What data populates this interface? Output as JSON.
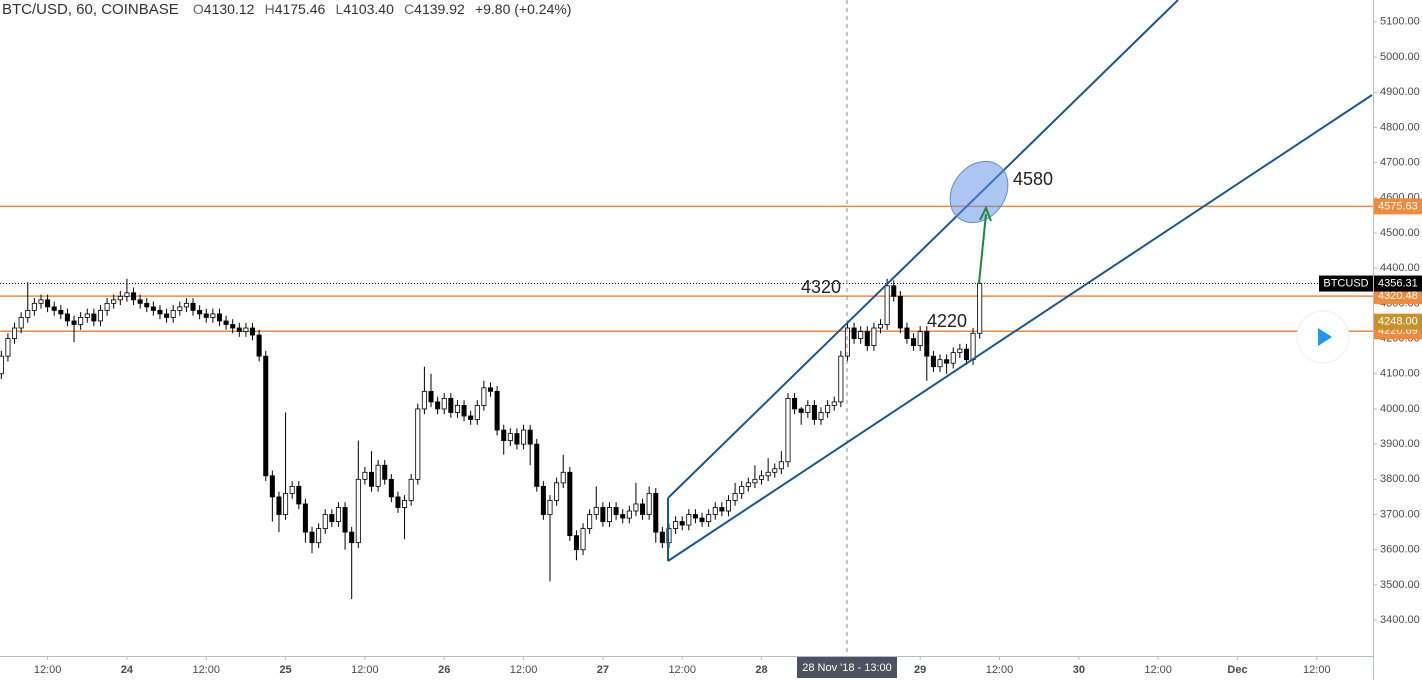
{
  "chart_data": {
    "type": "candlestick",
    "title": "BTC/USD, 60, COINBASE",
    "legend": {
      "o_label": "O",
      "o": "4130.12",
      "h_label": "H",
      "h": "4175.46",
      "l_label": "L",
      "l": "4103.40",
      "c_label": "C",
      "c": "4139.92",
      "change": "+9.80 (+0.24%)"
    },
    "crosshair_label": "28 Nov '18 - 13:00",
    "annotations": [
      "4580",
      "4320",
      "4220"
    ],
    "symbol_label": "BTCUSD",
    "ylim": [
      3298,
      5162
    ],
    "xlim": [
      -0.2,
      207.5
    ],
    "yticks": [
      {
        "value": 3400,
        "label": "3400.00"
      },
      {
        "value": 3500,
        "label": "3500.00"
      },
      {
        "value": 3600,
        "label": "3600.00"
      },
      {
        "value": 3700,
        "label": "3700.00"
      },
      {
        "value": 3800,
        "label": "3800.00"
      },
      {
        "value": 3900,
        "label": "3900.00"
      },
      {
        "value": 4000,
        "label": "4000.00"
      },
      {
        "value": 4100,
        "label": "4100.00"
      },
      {
        "value": 4200,
        "label": "4200.00"
      },
      {
        "value": 4300,
        "label": "4300.00"
      },
      {
        "value": 4400,
        "label": "4400.00"
      },
      {
        "value": 4500,
        "label": "4500.00"
      },
      {
        "value": 4600,
        "label": "4600.00"
      },
      {
        "value": 4700,
        "label": "4700.00"
      },
      {
        "value": 4800,
        "label": "4800.00"
      },
      {
        "value": 4900,
        "label": "4900.00"
      },
      {
        "value": 5000,
        "label": "5000.00"
      },
      {
        "value": 5100,
        "label": "5100.00"
      }
    ],
    "xticks": [
      {
        "value": 7,
        "label": "12:00"
      },
      {
        "value": 19,
        "label": "24"
      },
      {
        "value": 31,
        "label": "12:00"
      },
      {
        "value": 43,
        "label": "25"
      },
      {
        "value": 55,
        "label": "12:00"
      },
      {
        "value": 67,
        "label": "26"
      },
      {
        "value": 79,
        "label": "12:00"
      },
      {
        "value": 91,
        "label": "27"
      },
      {
        "value": 103,
        "label": "12:00"
      },
      {
        "value": 115,
        "label": "28"
      },
      {
        "value": 139,
        "label": "29"
      },
      {
        "value": 151,
        "label": "12:00"
      },
      {
        "value": 163,
        "label": "30"
      },
      {
        "value": 175,
        "label": "12:00"
      },
      {
        "value": 187,
        "label": "Dec"
      },
      {
        "value": 199,
        "label": "12:00"
      }
    ],
    "levels": [
      {
        "value": 4575.63,
        "label": "4575.63",
        "color": "#f08a3c",
        "line": true
      },
      {
        "value": 4320.48,
        "label": "4320.48",
        "color": "#f08a3c",
        "line": true
      },
      {
        "value": 4220.69,
        "label": "4220.69",
        "color": "#f08a3c",
        "line": true
      },
      {
        "value": 4248.0,
        "label": "4248.00",
        "color": "#c8922a",
        "line": false
      }
    ],
    "last_price": {
      "value": 4356.31,
      "label": "4356.31",
      "color": "#000000"
    },
    "up_color": "#ffffff",
    "down_color": "#000000",
    "open": [
      4100,
      4150,
      4200,
      4230,
      4260,
      4280,
      4300,
      4310,
      4290,
      4280,
      4270,
      4250,
      4240,
      4260,
      4270,
      4250,
      4280,
      4300,
      4310,
      4320,
      4330,
      4310,
      4300,
      4290,
      4280,
      4270,
      4260,
      4280,
      4290,
      4300,
      4280,
      4270,
      4260,
      4270,
      4250,
      4240,
      4230,
      4220,
      4230,
      4210,
      4150,
      3810,
      3750,
      3700,
      3760,
      3780,
      3730,
      3650,
      3620,
      3660,
      3700,
      3680,
      3720,
      3650,
      3620,
      3800,
      3820,
      3780,
      3840,
      3800,
      3750,
      3720,
      3740,
      3800,
      4000,
      4050,
      4020,
      4000,
      4030,
      3990,
      4010,
      3980,
      3970,
      4010,
      4060,
      4050,
      3940,
      3910,
      3930,
      3900,
      3940,
      3900,
      3780,
      3700,
      3740,
      3790,
      3820,
      3640,
      3600,
      3660,
      3700,
      3720,
      3680,
      3720,
      3700,
      3690,
      3710,
      3730,
      3700,
      3760,
      3650,
      3620,
      3660,
      3680,
      3670,
      3700,
      3690,
      3680,
      3700,
      3720,
      3710,
      3740,
      3760,
      3780,
      3790,
      3800,
      3810,
      3820,
      3830,
      3850,
      4030,
      4000,
      3990,
      4010,
      3970,
      3990,
      4010,
      4020,
      4150,
      4230,
      4200,
      4220,
      4180,
      4230,
      4240,
      4350,
      4320,
      4230,
      4200,
      4180,
      4220,
      4150,
      4120,
      4140,
      4130,
      4160,
      4170,
      4140,
      4215
    ],
    "high": [
      4165,
      4215,
      4245,
      4275,
      4360,
      4315,
      4325,
      4325,
      4305,
      4295,
      4285,
      4265,
      4275,
      4285,
      4285,
      4295,
      4315,
      4325,
      4335,
      4370,
      4345,
      4325,
      4315,
      4305,
      4295,
      4285,
      4295,
      4305,
      4315,
      4315,
      4295,
      4285,
      4285,
      4285,
      4265,
      4255,
      4245,
      4245,
      4245,
      4225,
      4165,
      3825,
      3765,
      3990,
      3795,
      3795,
      3745,
      3665,
      3675,
      3715,
      3715,
      3735,
      3735,
      3665,
      3910,
      3835,
      3880,
      3855,
      3855,
      3815,
      3765,
      3755,
      3815,
      4015,
      4120,
      4100,
      4035,
      4045,
      4045,
      4025,
      4025,
      3995,
      4025,
      4080,
      4075,
      4065,
      3955,
      3945,
      3945,
      3955,
      3955,
      3915,
      3795,
      3755,
      3805,
      3870,
      3835,
      3655,
      3675,
      3715,
      3780,
      3735,
      3735,
      3735,
      3715,
      3725,
      3790,
      3745,
      3780,
      3775,
      3665,
      3675,
      3695,
      3695,
      3715,
      3715,
      3705,
      3715,
      3735,
      3735,
      3755,
      3790,
      3795,
      3805,
      3840,
      3825,
      3860,
      3845,
      3880,
      4045,
      4045,
      4005,
      4025,
      4025,
      4005,
      4025,
      4035,
      4165,
      4245,
      4245,
      4235,
      4235,
      4245,
      4255,
      4370,
      4365,
      4335,
      4245,
      4215,
      4235,
      4235,
      4165,
      4155,
      4155,
      4175,
      4185,
      4185,
      4230,
      4365
    ],
    "low": [
      4085,
      4135,
      4185,
      4215,
      4245,
      4265,
      4285,
      4275,
      4265,
      4255,
      4235,
      4190,
      4225,
      4245,
      4235,
      4235,
      4265,
      4285,
      4295,
      4305,
      4295,
      4285,
      4275,
      4265,
      4255,
      4245,
      4245,
      4265,
      4275,
      4265,
      4255,
      4245,
      4245,
      4235,
      4225,
      4215,
      4205,
      4205,
      4195,
      4135,
      3795,
      3680,
      3650,
      3685,
      3745,
      3715,
      3620,
      3590,
      3605,
      3645,
      3665,
      3665,
      3600,
      3460,
      3605,
      3785,
      3765,
      3765,
      3785,
      3735,
      3705,
      3630,
      3725,
      3785,
      3985,
      4005,
      3985,
      3985,
      3975,
      3975,
      3965,
      3955,
      3955,
      3995,
      4035,
      3925,
      3870,
      3895,
      3885,
      3885,
      3840,
      3765,
      3685,
      3510,
      3725,
      3775,
      3625,
      3570,
      3585,
      3645,
      3685,
      3665,
      3665,
      3685,
      3675,
      3675,
      3695,
      3685,
      3685,
      3620,
      3605,
      3605,
      3645,
      3655,
      3655,
      3675,
      3665,
      3665,
      3685,
      3695,
      3695,
      3725,
      3745,
      3765,
      3775,
      3785,
      3795,
      3805,
      3815,
      3835,
      3985,
      3955,
      3975,
      3955,
      3955,
      3975,
      3995,
      4005,
      4135,
      4185,
      4185,
      4165,
      4165,
      4215,
      4225,
      4305,
      4215,
      4185,
      4165,
      4165,
      4080,
      4105,
      4105,
      4100,
      4115,
      4145,
      4125,
      4125,
      4200
    ],
    "close": [
      4150,
      4200,
      4230,
      4260,
      4280,
      4300,
      4310,
      4290,
      4280,
      4270,
      4250,
      4240,
      4260,
      4270,
      4250,
      4280,
      4300,
      4310,
      4320,
      4330,
      4310,
      4300,
      4290,
      4280,
      4270,
      4260,
      4280,
      4290,
      4300,
      4280,
      4270,
      4260,
      4270,
      4250,
      4240,
      4230,
      4220,
      4230,
      4210,
      4150,
      3810,
      3750,
      3700,
      3760,
      3780,
      3730,
      3650,
      3620,
      3660,
      3700,
      3680,
      3720,
      3650,
      3620,
      3800,
      3820,
      3780,
      3840,
      3800,
      3750,
      3720,
      3740,
      3800,
      4000,
      4050,
      4020,
      4000,
      4030,
      3990,
      4010,
      3980,
      3970,
      4010,
      4060,
      4050,
      3940,
      3910,
      3930,
      3900,
      3940,
      3900,
      3780,
      3700,
      3740,
      3790,
      3820,
      3640,
      3600,
      3660,
      3700,
      3720,
      3680,
      3720,
      3700,
      3690,
      3710,
      3730,
      3700,
      3760,
      3650,
      3620,
      3660,
      3680,
      3670,
      3700,
      3690,
      3680,
      3700,
      3720,
      3710,
      3740,
      3760,
      3780,
      3790,
      3800,
      3810,
      3820,
      3830,
      3850,
      4030,
      4000,
      3990,
      4010,
      3970,
      3990,
      4010,
      4020,
      4150,
      4230,
      4200,
      4220,
      4180,
      4230,
      4240,
      4350,
      4320,
      4230,
      4200,
      4180,
      4220,
      4150,
      4120,
      4140,
      4130,
      4160,
      4170,
      4140,
      4215,
      4357
    ]
  }
}
